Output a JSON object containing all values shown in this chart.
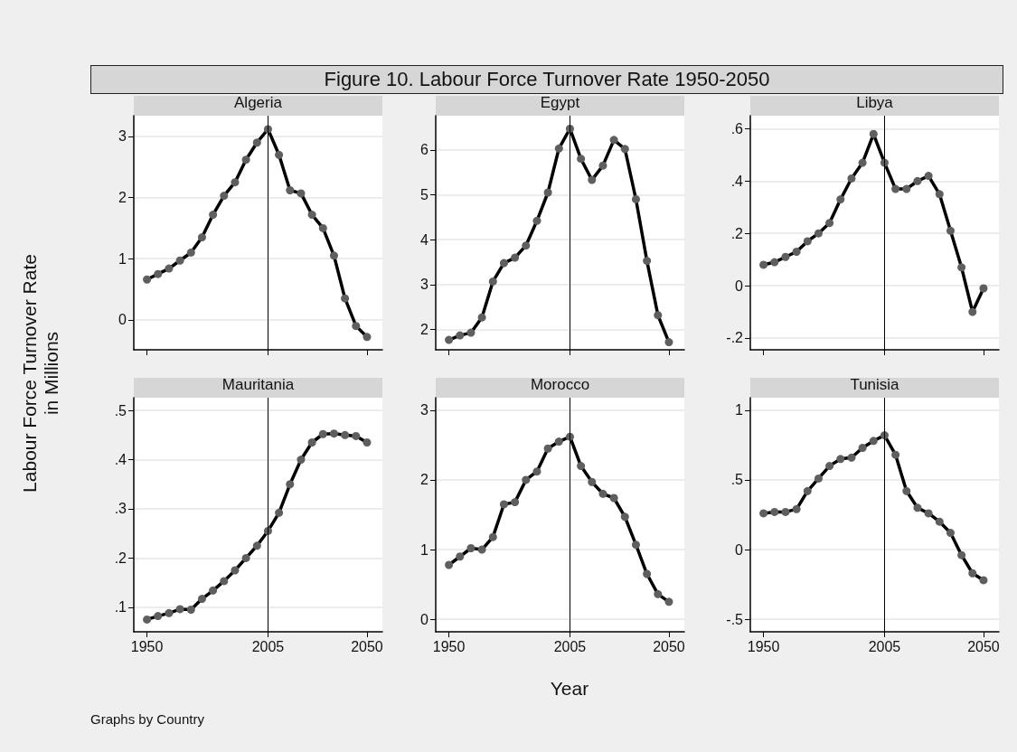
{
  "chart_data": [
    {
      "type": "line",
      "title": "Algeria",
      "annotations": [
        "Figure 10. Labour Force Turnover Rate 1950-2050"
      ],
      "color": "#000000",
      "marker": "circle",
      "line_style": "solid",
      "grid": "y",
      "tick_labels": "y",
      "x": [
        1950,
        1955,
        1960,
        1965,
        1970,
        1975,
        1980,
        1985,
        1990,
        1995,
        2000,
        2005,
        2010,
        2015,
        2020,
        2025,
        2030,
        2035,
        2040,
        2045,
        2050
      ],
      "values": [
        0.66,
        0.75,
        0.84,
        0.97,
        1.1,
        1.35,
        1.72,
        2.03,
        2.25,
        2.62,
        2.9,
        3.12,
        2.7,
        2.12,
        2.07,
        1.72,
        1.5,
        1.05,
        0.35,
        -0.1,
        -0.28
      ],
      "xlim": [
        1944,
        2057
      ],
      "xticks": [
        1950,
        2005,
        2050
      ],
      "ylim": [
        -0.49,
        3.34
      ],
      "yticks": [
        0,
        1,
        2,
        3
      ],
      "ref_lines": [
        {
          "axis": "x",
          "value": 2005,
          "color": "#000000"
        }
      ]
    },
    {
      "type": "line",
      "title": "Egypt",
      "color": "#000000",
      "marker": "circle",
      "line_style": "solid",
      "grid": "y",
      "tick_labels": "y",
      "x": [
        1950,
        1955,
        1960,
        1965,
        1970,
        1975,
        1980,
        1985,
        1990,
        1995,
        2000,
        2005,
        2010,
        2015,
        2020,
        2025,
        2030,
        2035,
        2040,
        2045,
        2050
      ],
      "values": [
        1.77,
        1.87,
        1.93,
        2.27,
        3.07,
        3.48,
        3.6,
        3.87,
        4.42,
        5.05,
        6.03,
        6.47,
        5.8,
        5.33,
        5.65,
        6.22,
        6.02,
        4.9,
        3.53,
        2.32,
        1.72
      ],
      "xlim": [
        1944,
        2057
      ],
      "xticks": [
        1950,
        2005,
        2050
      ],
      "ylim": [
        1.55,
        6.76
      ],
      "yticks": [
        2,
        3,
        4,
        5,
        6
      ],
      "ref_lines": [
        {
          "axis": "x",
          "value": 2005,
          "color": "#000000"
        }
      ]
    },
    {
      "type": "line",
      "title": "Libya",
      "color": "#000000",
      "marker": "circle",
      "line_style": "solid",
      "grid": "y",
      "tick_labels": "y",
      "x": [
        1950,
        1955,
        1960,
        1965,
        1970,
        1975,
        1980,
        1985,
        1990,
        1995,
        2000,
        2005,
        2010,
        2015,
        2020,
        2025,
        2030,
        2035,
        2040,
        2045,
        2050
      ],
      "values": [
        0.08,
        0.09,
        0.11,
        0.13,
        0.17,
        0.2,
        0.24,
        0.33,
        0.41,
        0.47,
        0.58,
        0.47,
        0.37,
        0.37,
        0.4,
        0.42,
        0.35,
        0.21,
        0.07,
        -0.1,
        -0.01
      ],
      "xlim": [
        1944,
        2057
      ],
      "xticks": [
        1950,
        2005,
        2050
      ],
      "ylim": [
        -0.245,
        0.65
      ],
      "yticks": [
        {
          "value": -0.2,
          "label": "-.2"
        },
        0,
        {
          "value": 0.2,
          "label": ".2"
        },
        {
          "value": 0.4,
          "label": ".4"
        },
        {
          "value": 0.6,
          "label": ".6"
        }
      ],
      "ref_lines": [
        {
          "axis": "x",
          "value": 2005,
          "color": "#000000"
        }
      ]
    },
    {
      "type": "line",
      "title": "Mauritania",
      "ylabel": "Labour Force Turnover Rate\nin Millions",
      "annotations": [
        "Graphs by Country"
      ],
      "color": "#000000",
      "marker": "circle",
      "line_style": "solid",
      "grid": "y",
      "x": [
        1950,
        1955,
        1960,
        1965,
        1970,
        1975,
        1980,
        1985,
        1990,
        1995,
        2000,
        2005,
        2010,
        2015,
        2020,
        2025,
        2030,
        2035,
        2040,
        2045,
        2050
      ],
      "values": [
        0.075,
        0.082,
        0.088,
        0.096,
        0.095,
        0.117,
        0.134,
        0.153,
        0.175,
        0.2,
        0.225,
        0.255,
        0.292,
        0.35,
        0.4,
        0.435,
        0.452,
        0.453,
        0.45,
        0.448,
        0.435
      ],
      "xlim": [
        1944,
        2057
      ],
      "xticks": [
        1950,
        2005,
        2050
      ],
      "ylim": [
        0.05,
        0.526
      ],
      "yticks": [
        {
          "value": 0.1,
          "label": ".1"
        },
        {
          "value": 0.2,
          "label": ".2"
        },
        {
          "value": 0.3,
          "label": ".3"
        },
        {
          "value": 0.4,
          "label": ".4"
        },
        {
          "value": 0.5,
          "label": ".5"
        }
      ],
      "ref_lines": [
        {
          "axis": "x",
          "value": 2005,
          "color": "#000000"
        }
      ]
    },
    {
      "type": "line",
      "title": "Morocco",
      "xlabel": "Year",
      "color": "#000000",
      "marker": "circle",
      "line_style": "solid",
      "grid": "y",
      "x": [
        1950,
        1955,
        1960,
        1965,
        1970,
        1975,
        1980,
        1985,
        1990,
        1995,
        2000,
        2005,
        2010,
        2015,
        2020,
        2025,
        2030,
        2035,
        2040,
        2045,
        2050
      ],
      "values": [
        0.78,
        0.9,
        1.02,
        1.0,
        1.18,
        1.65,
        1.68,
        2.0,
        2.12,
        2.45,
        2.55,
        2.62,
        2.2,
        1.97,
        1.8,
        1.74,
        1.47,
        1.07,
        0.65,
        0.36,
        0.25
      ],
      "xlim": [
        1944,
        2057
      ],
      "xticks": [
        1950,
        2005,
        2050
      ],
      "ylim": [
        -0.18,
        3.18
      ],
      "yticks": [
        0,
        1,
        2,
        3
      ],
      "ref_lines": [
        {
          "axis": "x",
          "value": 2005,
          "color": "#000000"
        }
      ]
    },
    {
      "type": "line",
      "title": "Tunisia",
      "color": "#000000",
      "marker": "circle",
      "line_style": "solid",
      "grid": "y",
      "x": [
        1950,
        1955,
        1960,
        1965,
        1970,
        1975,
        1980,
        1985,
        1990,
        1995,
        2000,
        2005,
        2010,
        2015,
        2020,
        2025,
        2030,
        2035,
        2040,
        2045,
        2050
      ],
      "values": [
        0.26,
        0.27,
        0.27,
        0.29,
        0.42,
        0.51,
        0.6,
        0.65,
        0.66,
        0.73,
        0.78,
        0.82,
        0.68,
        0.42,
        0.3,
        0.26,
        0.2,
        0.12,
        -0.04,
        -0.17,
        -0.22
      ],
      "xlim": [
        1944,
        2057
      ],
      "xticks": [
        1950,
        2005,
        2050
      ],
      "ylim": [
        -0.59,
        1.09
      ],
      "yticks": [
        {
          "value": -0.5,
          "label": "-.5"
        },
        0,
        {
          "value": 0.5,
          "label": ".5"
        },
        1
      ],
      "ref_lines": [
        {
          "axis": "x",
          "value": 2005,
          "color": "#000000"
        }
      ]
    }
  ]
}
